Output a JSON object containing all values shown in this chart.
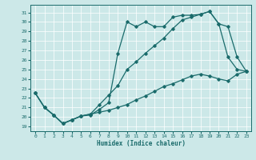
{
  "xlabel": "Humidex (Indice chaleur)",
  "bg_color": "#cce8e8",
  "line_color": "#1a6b6b",
  "marker": "D",
  "markersize": 1.8,
  "linewidth": 0.9,
  "xlim": [
    -0.5,
    23.5
  ],
  "ylim": [
    18.5,
    31.8
  ],
  "yticks": [
    19,
    20,
    21,
    22,
    23,
    24,
    25,
    26,
    27,
    28,
    29,
    30,
    31
  ],
  "xticks": [
    0,
    1,
    2,
    3,
    4,
    5,
    6,
    7,
    8,
    9,
    10,
    11,
    12,
    13,
    14,
    15,
    16,
    17,
    18,
    19,
    20,
    21,
    22,
    23
  ],
  "line1_x": [
    0,
    1,
    2,
    3,
    4,
    5,
    6,
    7,
    8,
    9,
    10,
    11,
    12,
    13,
    14,
    15,
    16,
    17,
    18,
    19,
    20,
    21,
    22,
    23
  ],
  "line1_y": [
    22.5,
    21.0,
    20.2,
    19.3,
    19.7,
    20.1,
    20.2,
    20.8,
    21.5,
    26.7,
    30.0,
    29.5,
    30.0,
    29.5,
    29.5,
    30.5,
    30.7,
    30.7,
    30.8,
    31.1,
    29.8,
    26.3,
    25.0,
    24.8
  ],
  "line2_x": [
    0,
    1,
    2,
    3,
    4,
    5,
    6,
    7,
    8,
    9,
    10,
    11,
    12,
    13,
    14,
    15,
    16,
    17,
    18,
    19,
    20,
    21,
    22,
    23
  ],
  "line2_y": [
    22.5,
    21.0,
    20.2,
    19.3,
    19.7,
    20.1,
    20.3,
    21.3,
    22.3,
    23.3,
    25.0,
    25.8,
    26.7,
    27.5,
    28.3,
    29.3,
    30.2,
    30.5,
    30.8,
    31.1,
    29.8,
    29.5,
    26.3,
    24.8
  ],
  "line3_x": [
    0,
    1,
    2,
    3,
    4,
    5,
    6,
    7,
    8,
    9,
    10,
    11,
    12,
    13,
    14,
    15,
    16,
    17,
    18,
    19,
    20,
    21,
    22,
    23
  ],
  "line3_y": [
    22.5,
    21.0,
    20.2,
    19.3,
    19.7,
    20.1,
    20.3,
    20.5,
    20.7,
    21.0,
    21.3,
    21.8,
    22.2,
    22.7,
    23.2,
    23.5,
    23.9,
    24.3,
    24.5,
    24.3,
    24.0,
    23.8,
    24.5,
    24.8
  ]
}
